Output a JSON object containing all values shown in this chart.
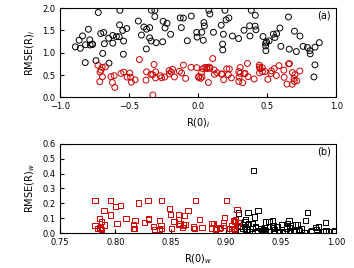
{
  "panel_a": {
    "xlabel": "R(0)$_i$",
    "ylabel": "RMSE(R)$_i$",
    "label": "(a)",
    "xlim": [
      -1,
      1
    ],
    "ylim": [
      0,
      2
    ],
    "xticks": [
      -1,
      -0.5,
      0,
      0.5,
      1
    ],
    "yticks": [
      0,
      0.5,
      1,
      1.5,
      2
    ]
  },
  "panel_b": {
    "xlabel": "R(0)$_w$",
    "ylabel": "RMSE(R)$_w$",
    "label": "(b)",
    "xlim": [
      0.75,
      1.0
    ],
    "ylim": [
      0,
      0.6
    ],
    "xticks": [
      0.75,
      0.8,
      0.85,
      0.9,
      0.95,
      1.0
    ],
    "yticks": [
      0,
      0.1,
      0.2,
      0.3,
      0.4,
      0.5,
      0.6
    ]
  },
  "circle_color_black": "#000000",
  "circle_color_red": "#cc0000",
  "square_color_black": "#000000",
  "square_color_red": "#cc0000",
  "marker_size_a": 18,
  "marker_size_b": 14,
  "linewidth": 0.7,
  "seed": 42
}
